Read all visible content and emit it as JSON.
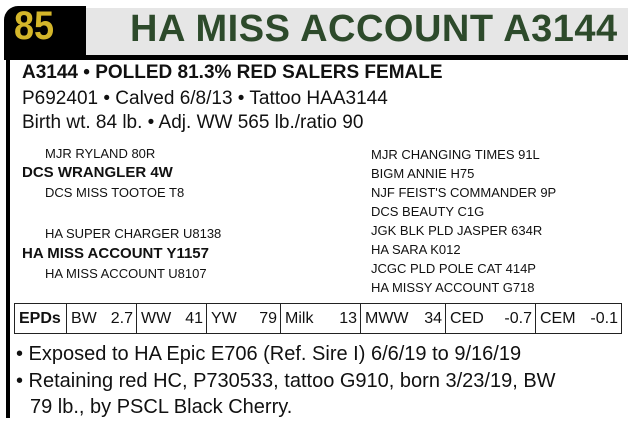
{
  "header": {
    "lot": "85",
    "title": "HA MISS ACCOUNT A3144"
  },
  "summary": {
    "line1": "A3144 • POLLED 81.3% RED SALERS FEMALE",
    "line2": "P692401 • Calved 6/8/13 • Tattoo HAA3144",
    "line3": "Birth wt. 84 lb. • Adj. WW 565 lb./ratio 90"
  },
  "pedigree": {
    "left": [
      "MJR RYLAND 80R",
      "DCS WRANGLER 4W",
      "DCS MISS TOOTOE T8",
      "HA SUPER CHARGER U8138",
      "HA MISS ACCOUNT Y1157",
      "HA MISS ACCOUNT U8107"
    ],
    "right": [
      "MJR CHANGING TIMES 91L",
      "BIGM ANNIE H75",
      "NJF FEIST'S COMMANDER 9P",
      "DCS BEAUTY C1G",
      "JGK BLK PLD JASPER 634R",
      "HA SARA K012",
      "JCGC PLD POLE CAT 414P",
      "HA MISSY ACCOUNT G718"
    ]
  },
  "epds": {
    "label": "EPDs",
    "items": [
      {
        "name": "BW",
        "value": "2.7"
      },
      {
        "name": "WW",
        "value": "41"
      },
      {
        "name": "YW",
        "value": "79"
      },
      {
        "name": "Milk",
        "value": "13"
      },
      {
        "name": "MWW",
        "value": "34"
      },
      {
        "name": "CED",
        "value": "-0.7"
      },
      {
        "name": "CEM",
        "value": "-0.1"
      }
    ]
  },
  "notes": [
    "• Exposed to HA Epic E706 (Ref. Sire I) 6/6/19 to 9/16/19",
    "• Retaining red HC, P730533, tattoo G910, born 3/23/19, BW",
    "79 lb., by PSCL Black Cherry."
  ],
  "colors": {
    "title": "#2d4a2b",
    "lot": "#d4b62a",
    "band": "#e6e6e6"
  }
}
